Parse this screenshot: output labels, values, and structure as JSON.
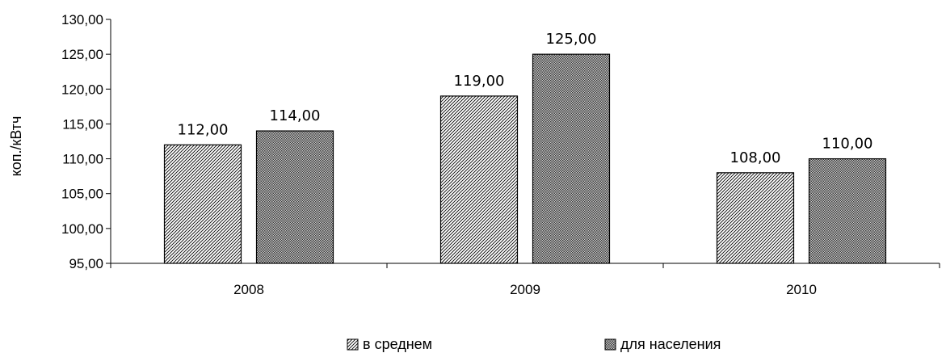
{
  "chart_data": {
    "type": "bar",
    "categories": [
      "2008",
      "2009",
      "2010"
    ],
    "series": [
      {
        "name": "в среднем",
        "values": [
          112.0,
          119.0,
          108.0
        ],
        "labels": [
          "112,00",
          "119,00",
          "108,00"
        ],
        "pattern": "diagonal-hatch"
      },
      {
        "name": "для населения",
        "values": [
          114.0,
          125.0,
          110.0
        ],
        "labels": [
          "114,00",
          "125,00",
          "110,00"
        ],
        "pattern": "crosshatch"
      }
    ],
    "ylabel": "коп./кВтч",
    "xlabel": "",
    "ylim": [
      95,
      130
    ],
    "yticks": [
      95,
      100,
      105,
      110,
      115,
      120,
      125,
      130
    ],
    "ytick_labels": [
      "95,00",
      "100,00",
      "105,00",
      "110,00",
      "115,00",
      "120,00",
      "125,00",
      "130,00"
    ],
    "grid": false,
    "legend_position": "bottom"
  }
}
